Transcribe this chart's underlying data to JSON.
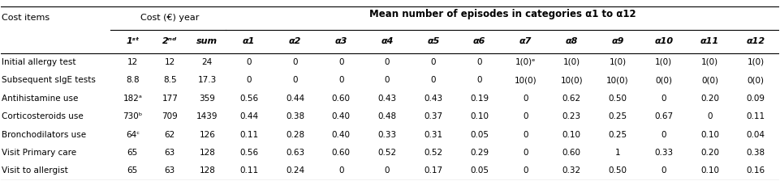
{
  "title_left": "Cost items",
  "title_mid": "Cost (€) year",
  "title_right": "Mean number of episodes in categories α1 to α12",
  "col_headers": [
    "1ˢᵗ",
    "2ⁿᵈ",
    "sum",
    "α1",
    "α2",
    "α3",
    "α4",
    "α5",
    "α6",
    "α7",
    "α8",
    "α9",
    "α10",
    "α11",
    "α12"
  ],
  "rows": [
    {
      "label": "Initial allergy test",
      "values": [
        "12",
        "12",
        "24",
        "0",
        "0",
        "0",
        "0",
        "0",
        "0",
        "1(0)ᵉ",
        "1(0)",
        "1(0)",
        "1(0)",
        "1(0)",
        "1(0)"
      ]
    },
    {
      "label": "Subsequent sIgE tests",
      "values": [
        "8.8",
        "8.5",
        "17.3",
        "0",
        "0",
        "0",
        "0",
        "0",
        "0",
        "10(0)",
        "10(0)",
        "10(0)",
        "0(0)",
        "0(0)",
        "0(0)"
      ]
    },
    {
      "label": "Antihistamine use",
      "values": [
        "182ᵃ",
        "177",
        "359",
        "0.56",
        "0.44",
        "0.60",
        "0.43",
        "0.43",
        "0.19",
        "0",
        "0.62",
        "0.50",
        "0",
        "0.20",
        "0.09"
      ]
    },
    {
      "label": "Corticosteroids use",
      "values": [
        "730ᵇ",
        "709",
        "1439",
        "0.44",
        "0.38",
        "0.40",
        "0.48",
        "0.37",
        "0.10",
        "0",
        "0.23",
        "0.25",
        "0.67",
        "0",
        "0.11"
      ]
    },
    {
      "label": "Bronchodilators use",
      "values": [
        "64ᶜ",
        "62",
        "126",
        "0.11",
        "0.28",
        "0.40",
        "0.33",
        "0.31",
        "0.05",
        "0",
        "0.10",
        "0.25",
        "0",
        "0.10",
        "0.04"
      ]
    },
    {
      "label": "Visit Primary care",
      "values": [
        "65",
        "63",
        "128",
        "0.56",
        "0.63",
        "0.60",
        "0.52",
        "0.52",
        "0.29",
        "0",
        "0.60",
        "1",
        "0.33",
        "0.20",
        "0.38"
      ]
    },
    {
      "label": "Visit to allergist",
      "values": [
        "65",
        "63",
        "128",
        "0.11",
        "0.24",
        "0",
        "0",
        "0.17",
        "0.05",
        "0",
        "0.32",
        "0.50",
        "0",
        "0.10",
        "0.16"
      ]
    }
  ],
  "bg_color": "#ffffff",
  "text_color": "#000000",
  "header_line_color": "#000000",
  "font_size": 7.5,
  "header_font_size": 8.0
}
